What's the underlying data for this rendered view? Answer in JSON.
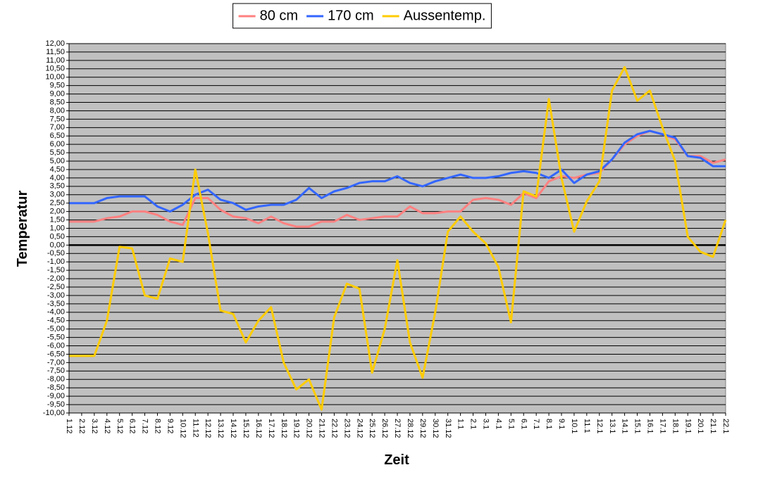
{
  "chart_data": {
    "type": "line",
    "x_label": "Zeit",
    "y_label": "Temperatur",
    "categories": [
      "1.12",
      "2.12",
      "3.12",
      "4.12",
      "5.12",
      "6.12",
      "7.12",
      "8.12",
      "9.12",
      "10.12",
      "11.12",
      "12.12",
      "13.12",
      "14.12",
      "15.12",
      "16.12",
      "17.12",
      "18.12",
      "19.12",
      "20.12",
      "21.12",
      "22.12",
      "23.12",
      "24.12",
      "25.12",
      "26.12",
      "27.12",
      "28.12",
      "29.12",
      "30.12",
      "31.12",
      "1.1",
      "2.1",
      "3.1",
      "4.1",
      "5.1",
      "6.1",
      "7.1",
      "8.1",
      "9.1",
      "10.1",
      "11.1",
      "12.1",
      "13.1",
      "14.1",
      "15.1",
      "16.1",
      "17.1",
      "18.1",
      "19.1",
      "20.1",
      "21.1",
      "22.1"
    ],
    "series": [
      {
        "name": "80 cm",
        "color": "#ff8080",
        "values": [
          1.4,
          1.4,
          1.4,
          1.6,
          1.7,
          2.0,
          2.0,
          1.8,
          1.4,
          1.2,
          2.8,
          2.8,
          2.1,
          1.7,
          1.6,
          1.3,
          1.7,
          1.3,
          1.1,
          1.1,
          1.4,
          1.4,
          1.8,
          1.5,
          1.6,
          1.7,
          1.7,
          2.3,
          1.9,
          1.9,
          2.0,
          2.0,
          2.7,
          2.8,
          2.7,
          2.4,
          3.1,
          2.8,
          3.8,
          4.1,
          4.0,
          4.2,
          4.3,
          5.1,
          6.0,
          6.5,
          6.8,
          6.6,
          6.3,
          5.3,
          5.3,
          4.9,
          5.1
        ]
      },
      {
        "name": "170 cm",
        "color": "#3366ff",
        "values": [
          2.5,
          2.5,
          2.5,
          2.8,
          2.9,
          2.9,
          2.9,
          2.3,
          2.0,
          2.4,
          3.0,
          3.3,
          2.7,
          2.5,
          2.1,
          2.3,
          2.4,
          2.4,
          2.7,
          3.4,
          2.8,
          3.2,
          3.4,
          3.7,
          3.8,
          3.8,
          4.1,
          3.7,
          3.5,
          3.8,
          4.0,
          4.2,
          4.0,
          4.0,
          4.1,
          4.3,
          4.4,
          4.3,
          4.0,
          4.5,
          3.7,
          4.2,
          4.4,
          5.1,
          6.1,
          6.6,
          6.8,
          6.6,
          6.4,
          5.3,
          5.2,
          4.7,
          4.7
        ]
      },
      {
        "name": "Aussentemp.",
        "color": "#ffcc00",
        "values": [
          -6.6,
          -6.6,
          -6.6,
          -4.5,
          -0.1,
          -0.2,
          -3.0,
          -3.2,
          -0.8,
          -1.0,
          4.5,
          0.7,
          -3.9,
          -4.1,
          -5.8,
          -4.5,
          -3.7,
          -7.0,
          -8.6,
          -8.0,
          -9.8,
          -4.3,
          -2.3,
          -2.6,
          -7.6,
          -5.0,
          -0.9,
          -5.8,
          -7.9,
          -4.0,
          0.8,
          1.7,
          0.8,
          0.1,
          -1.3,
          -4.6,
          3.2,
          2.9,
          8.7,
          4.0,
          0.8,
          2.6,
          3.8,
          9.2,
          10.6,
          8.6,
          9.2,
          7.0,
          5.0,
          0.5,
          -0.4,
          -0.7,
          1.5
        ]
      }
    ],
    "ylim": [
      -10,
      12
    ],
    "yticks": [
      {
        "value": -10,
        "label": "-10,00"
      },
      {
        "value": -9.5,
        "label": "-9,50"
      },
      {
        "value": -9,
        "label": "-9,00"
      },
      {
        "value": -8.5,
        "label": "-8,50"
      },
      {
        "value": -8,
        "label": "-8,00"
      },
      {
        "value": -7.5,
        "label": "-7,50"
      },
      {
        "value": -7,
        "label": "-7,00"
      },
      {
        "value": -6.5,
        "label": "-6,50"
      },
      {
        "value": -6,
        "label": "-6,00"
      },
      {
        "value": -5.5,
        "label": "-5,50"
      },
      {
        "value": -5,
        "label": "-5,00"
      },
      {
        "value": -4.5,
        "label": "-4,50"
      },
      {
        "value": -4,
        "label": "-4,00"
      },
      {
        "value": -3.5,
        "label": "-3,50"
      },
      {
        "value": -3,
        "label": "-3,00"
      },
      {
        "value": -2.5,
        "label": "-2,50"
      },
      {
        "value": -2,
        "label": "-2,00"
      },
      {
        "value": -1.5,
        "label": "-1,50"
      },
      {
        "value": -1,
        "label": "-1,00"
      },
      {
        "value": -0.5,
        "label": "-0,50"
      },
      {
        "value": 0,
        "label": "0,00"
      },
      {
        "value": 0.5,
        "label": "0,50"
      },
      {
        "value": 1,
        "label": "1,00"
      },
      {
        "value": 1.5,
        "label": "1,50"
      },
      {
        "value": 2,
        "label": "2,00"
      },
      {
        "value": 2.5,
        "label": "2,50"
      },
      {
        "value": 3,
        "label": "3,00"
      },
      {
        "value": 3.5,
        "label": "3,50"
      },
      {
        "value": 4,
        "label": "4,00"
      },
      {
        "value": 4.5,
        "label": "4,50"
      },
      {
        "value": 5,
        "label": "5,00"
      },
      {
        "value": 5.5,
        "label": "5,50"
      },
      {
        "value": 6,
        "label": "6,00"
      },
      {
        "value": 6.5,
        "label": "6,50"
      },
      {
        "value": 7,
        "label": "7,00"
      },
      {
        "value": 7.5,
        "label": "7,50"
      },
      {
        "value": 8,
        "label": "8,00"
      },
      {
        "value": 8.5,
        "label": "8,50"
      },
      {
        "value": 9,
        "label": "9,00"
      },
      {
        "value": 9.5,
        "label": "9,50"
      },
      {
        "value": 10,
        "label": "10,00"
      },
      {
        "value": 10.5,
        "label": "10,50"
      },
      {
        "value": 11,
        "label": "11,00"
      },
      {
        "value": 11.5,
        "label": "11,50"
      },
      {
        "value": 12,
        "label": "12,00"
      }
    ],
    "grid": true,
    "plot_background": "#c0c0c0",
    "legend_position": "top"
  }
}
